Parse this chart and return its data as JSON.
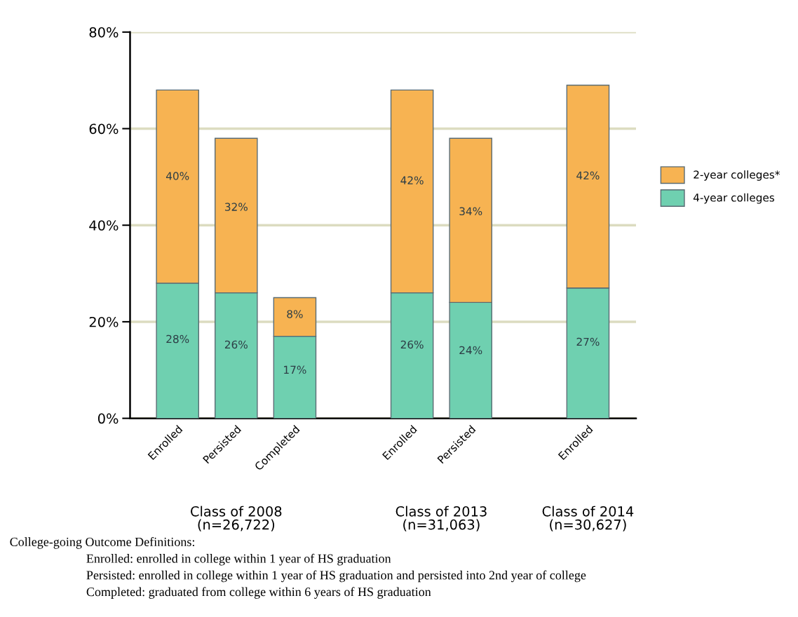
{
  "chart_data": {
    "type": "bar",
    "stacked": true,
    "categories": [
      "Enrolled",
      "Persisted",
      "Completed",
      null,
      "Enrolled",
      "Persisted",
      null,
      "Enrolled"
    ],
    "series": [
      {
        "name": "4-year colleges",
        "color": "#6fd0b0",
        "values": [
          28,
          26,
          17,
          null,
          26,
          24,
          null,
          27
        ],
        "value_labels": [
          "28%",
          "26%",
          "17%",
          null,
          "26%",
          "24%",
          null,
          "27%"
        ]
      },
      {
        "name": "2-year colleges*",
        "color": "#f7b352",
        "values": [
          40,
          32,
          8,
          null,
          42,
          34,
          null,
          42
        ],
        "value_labels": [
          "40%",
          "32%",
          "8%",
          null,
          "42%",
          "34%",
          null,
          "42%"
        ]
      }
    ],
    "ylim": [
      0,
      80
    ],
    "yticks": [
      {
        "value": 0,
        "label": "0%"
      },
      {
        "value": 20,
        "label": "20%"
      },
      {
        "value": 40,
        "label": "40%"
      },
      {
        "value": 60,
        "label": "60%"
      },
      {
        "value": 80,
        "label": "80%"
      }
    ],
    "grid": "y",
    "legend": "right",
    "annotations": [
      "Class of 2008\n(n=26,722)",
      "Class of 2013\n(n=31,063)",
      "Class of 2014\n(n=30,627)",
      "College-going Outcome Definitions:",
      "Enrolled: enrolled in college within 1 year of HS graduation",
      "Persisted: enrolled in college within 1 year of HS graduation and persisted into 2nd year of college",
      "Completed: graduated from college within 6 years of HS graduation"
    ]
  }
}
